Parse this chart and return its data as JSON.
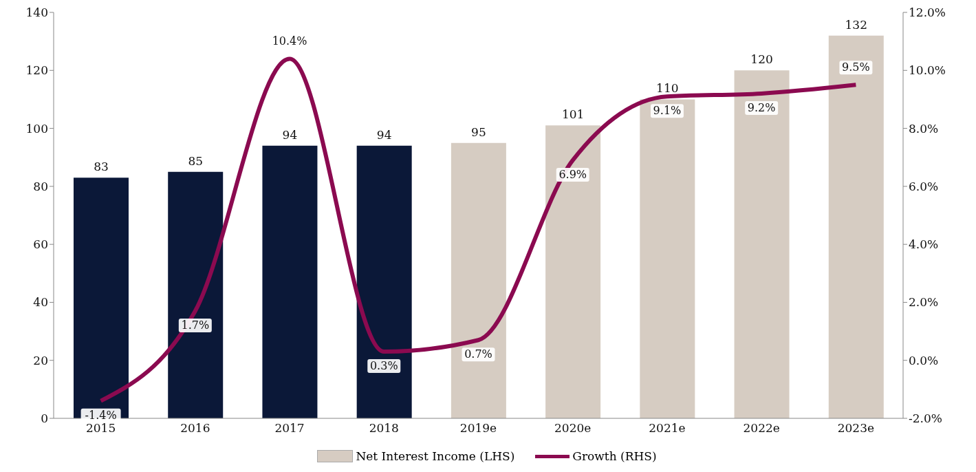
{
  "chart_data": {
    "type": "bar",
    "categories": [
      "2015",
      "2016",
      "2017",
      "2018",
      "2019e",
      "2020e",
      "2021e",
      "2022e",
      "2023e"
    ],
    "series": [
      {
        "type": "bar",
        "name": "Net Interest Income (LHS)",
        "color": "#d6ccc2",
        "colors": [
          "#0b1838",
          "#0b1838",
          "#0b1838",
          "#0b1838",
          "#d6ccc2",
          "#d6ccc2",
          "#d6ccc2",
          "#d6ccc2",
          "#d6ccc2"
        ],
        "values": [
          83,
          85,
          94,
          94,
          95,
          101,
          110,
          120,
          132
        ],
        "value_labels": [
          "83",
          "85",
          "94",
          "94",
          "95",
          "101",
          "110",
          "120",
          "132"
        ]
      },
      {
        "type": "line",
        "name": "Growth (RHS)",
        "color": "#8b0a50",
        "axis": "y2",
        "values": [
          -1.4,
          1.7,
          10.4,
          0.3,
          0.7,
          6.9,
          9.1,
          9.2,
          9.5
        ],
        "value_labels": [
          "-1.4%",
          "1.7%",
          "10.4%",
          "0.3%",
          "0.7%",
          "6.9%",
          "9.1%",
          "9.2%",
          "9.5%"
        ]
      }
    ],
    "ylim": [
      0,
      140
    ],
    "yticks": [
      0,
      20,
      40,
      60,
      80,
      100,
      120,
      140
    ],
    "y2lim": [
      -2,
      12
    ],
    "y2ticks": [
      {
        "value": -2,
        "label": "-2.0%"
      },
      {
        "value": 0,
        "label": "0.0%"
      },
      {
        "value": 2,
        "label": "2.0%"
      },
      {
        "value": 4,
        "label": "4.0%"
      },
      {
        "value": 6,
        "label": "6.0%"
      },
      {
        "value": 8,
        "label": "8.0%"
      },
      {
        "value": 10,
        "label": "10.0%"
      },
      {
        "value": 12,
        "label": "12.0%"
      }
    ],
    "grid": false,
    "legend": "bottom",
    "marker": "none",
    "line_style": "solid"
  }
}
